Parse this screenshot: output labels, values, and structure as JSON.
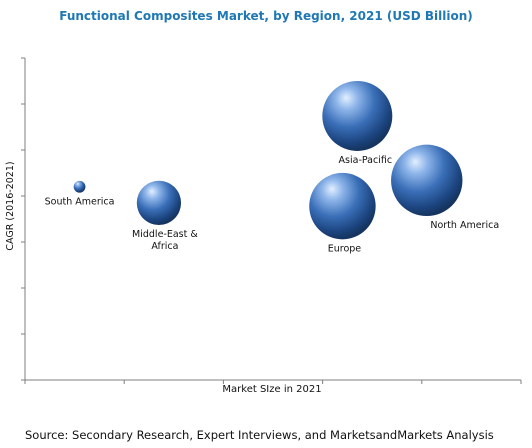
{
  "chart_data": {
    "type": "bubble",
    "title": "Functional Composites Market, by Region, 2021 (USD Billion)",
    "xlabel": "Market SIze in 2021",
    "ylabel": "CAGR (2016-2021)",
    "grid": false,
    "bubbles": [
      {
        "name": "South America",
        "label_lines": [
          "South America"
        ],
        "x": 0.11,
        "y": 0.6,
        "size": 0.4
      },
      {
        "name": "Middle-East & Africa",
        "label_lines": [
          "Middle-East &",
          "Africa"
        ],
        "x": 0.27,
        "y": 0.55,
        "size": 0.62
      },
      {
        "name": "Asia-Pacific",
        "label_lines": [
          "Asia-Pacific"
        ],
        "x": 0.67,
        "y": 0.82,
        "size": 0.98
      },
      {
        "name": "Europe",
        "label_lines": [
          "Europe"
        ],
        "x": 0.64,
        "y": 0.54,
        "size": 0.93
      },
      {
        "name": "North America",
        "label_lines": [
          "North America"
        ],
        "x": 0.81,
        "y": 0.62,
        "size": 1.0
      }
    ],
    "colors": {
      "bubble_dark": "#1b3f73",
      "bubble_mid": "#3a78c4",
      "bubble_light": "#dbe9ff",
      "title": "#1f78b4",
      "axis": "#7f7f7f"
    }
  },
  "source": "Source: Secondary Research, Expert Interviews, and MarketsandMarkets Analysis"
}
